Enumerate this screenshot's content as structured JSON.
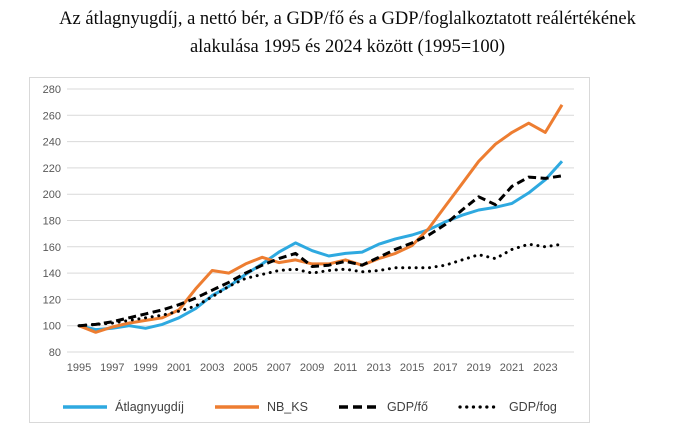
{
  "title": {
    "line1": "Az átlagnyugdíj, a nettó bér, a GDP/fő és a GDP/foglalkoztatott reálértékének",
    "line2": "alakulása 1995 és 2024 között (1995=100)"
  },
  "chart_data": {
    "type": "line",
    "x": [
      1995,
      1996,
      1997,
      1998,
      1999,
      2000,
      2001,
      2002,
      2003,
      2004,
      2005,
      2006,
      2007,
      2008,
      2009,
      2010,
      2011,
      2012,
      2013,
      2014,
      2015,
      2016,
      2017,
      2018,
      2019,
      2020,
      2021,
      2022,
      2023,
      2024
    ],
    "x_tick_labels": [
      "1995",
      "1997",
      "1999",
      "2001",
      "2003",
      "2005",
      "2007",
      "2009",
      "2011",
      "2013",
      "2015",
      "2017",
      "2019",
      "2021",
      "2023"
    ],
    "ylim": [
      80,
      280
    ],
    "y_ticks": [
      280,
      260,
      240,
      220,
      200,
      180,
      160,
      140,
      120,
      100,
      80
    ],
    "grid": true,
    "legend_position": "bottom",
    "series": [
      {
        "name": "Átlagnyugdíj",
        "color": "#2ea9e0",
        "style": "solid",
        "values": [
          100,
          97,
          98,
          100,
          98,
          101,
          106,
          113,
          123,
          130,
          139,
          147,
          156,
          163,
          157,
          153,
          155,
          156,
          162,
          166,
          169,
          173,
          179,
          184,
          188,
          190,
          193,
          201,
          211,
          225
        ]
      },
      {
        "name": "NB_KS",
        "color": "#ed7d31",
        "style": "solid",
        "values": [
          100,
          95,
          99,
          102,
          104,
          106,
          112,
          128,
          142,
          140,
          147,
          152,
          148,
          150,
          147,
          147,
          150,
          146,
          151,
          155,
          161,
          174,
          191,
          208,
          225,
          238,
          247,
          254,
          247,
          268
        ]
      },
      {
        "name": "GDP/fő",
        "color": "#000000",
        "style": "dashed",
        "values": [
          100,
          101,
          103,
          106,
          109,
          112,
          116,
          121,
          127,
          133,
          140,
          146,
          151,
          155,
          145,
          146,
          149,
          146,
          152,
          158,
          163,
          169,
          177,
          188,
          198,
          192,
          206,
          213,
          212,
          214
        ]
      },
      {
        "name": "GDP/fog",
        "color": "#000000",
        "style": "dotted",
        "values": [
          100,
          101,
          102,
          104,
          106,
          108,
          111,
          115,
          122,
          130,
          136,
          139,
          142,
          143,
          140,
          142,
          143,
          141,
          142,
          144,
          144,
          144,
          146,
          150,
          154,
          151,
          158,
          162,
          160,
          162
        ]
      }
    ]
  },
  "style": {
    "grid_color": "#d9d9d9",
    "tick_color": "#595959",
    "frame_color": "#d9d9d9",
    "accent_blue": "#2ea9e0",
    "accent_orange": "#ed7d31"
  }
}
